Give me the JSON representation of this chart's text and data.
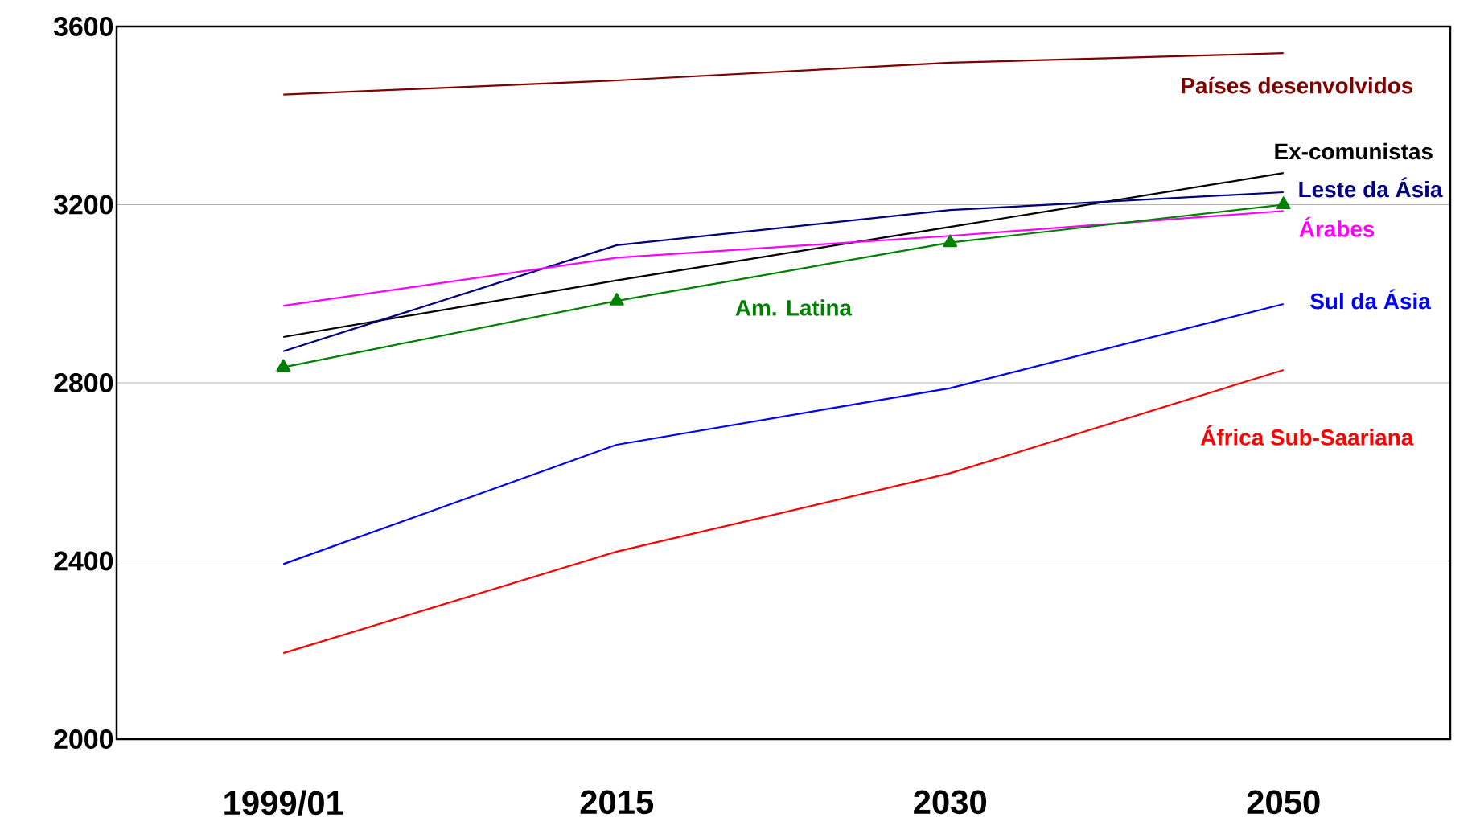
{
  "chart_data": {
    "type": "line",
    "categories": [
      "1999/01",
      "2015",
      "2030",
      "2050"
    ],
    "series": [
      {
        "name": "Países desenvolvidos",
        "color": "#800000",
        "values": [
          3447,
          3479,
          3519,
          3540
        ]
      },
      {
        "name": "Ex-comunistas",
        "color": "#000000",
        "values": [
          2903,
          3030,
          3150,
          3271
        ]
      },
      {
        "name": "Leste da Ásia",
        "color": "#000080",
        "values": [
          2871,
          3109,
          3188,
          3228
        ]
      },
      {
        "name": "Árabes",
        "color": "#ff00ff",
        "values": [
          2973,
          3081,
          3130,
          3186
        ]
      },
      {
        "name": "Am. Latina",
        "color": "#008000",
        "marker": "triangle",
        "values": [
          2835,
          2984,
          3115,
          3200
        ]
      },
      {
        "name": "Sul da Ásia",
        "color": "#0000ff",
        "values": [
          2393,
          2661,
          2788,
          2977
        ]
      },
      {
        "name": "África Sub-Saariana",
        "color": "#ff0000",
        "values": [
          2193,
          2421,
          2597,
          2829
        ]
      }
    ],
    "ylim": [
      2000,
      3600
    ],
    "yticks": [
      2000,
      2400,
      2800,
      3200,
      3600
    ],
    "grid": "y"
  }
}
